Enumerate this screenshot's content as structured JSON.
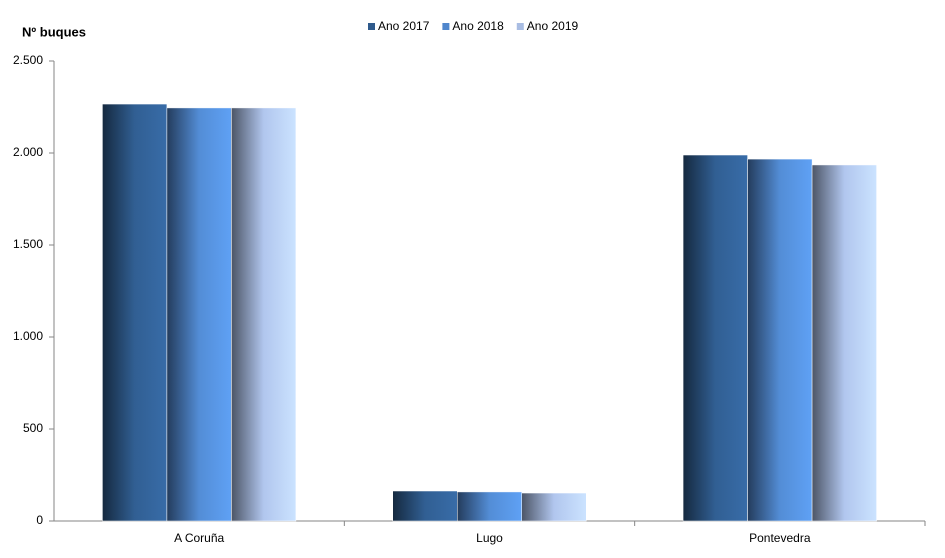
{
  "chart_data": {
    "type": "bar",
    "y_label": "Nº  buques",
    "categories": [
      "A Coruña",
      "Lugo",
      "Pontevedra"
    ],
    "series": [
      {
        "name": "Ano 2017",
        "color": "#2f5a8c",
        "values": [
          2266,
          163,
          1989
        ]
      },
      {
        "name": "Ano 2018",
        "color": "#4f86cc",
        "values": [
          2245,
          158,
          1967
        ]
      },
      {
        "name": "Ano 2019",
        "color": "#a9bde3",
        "values": [
          2245,
          152,
          1935
        ]
      }
    ],
    "ylim": [
      0,
      2500
    ],
    "yticks": [
      0,
      500,
      {
        "value": 1000,
        "label": "1.000"
      },
      {
        "value": 1500,
        "label": "1.500"
      },
      {
        "value": 2000,
        "label": "2.000"
      },
      {
        "value": 2500,
        "label": "2.500"
      }
    ],
    "grid": false,
    "legend": "top"
  }
}
